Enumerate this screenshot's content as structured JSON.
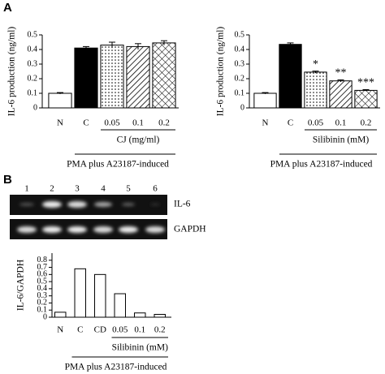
{
  "panels": [
    "A",
    "B"
  ],
  "gel": {
    "lanes": [
      "1",
      "2",
      "3",
      "4",
      "5",
      "6"
    ],
    "bands": [
      "IL-6",
      "GAPDH"
    ]
  },
  "chart_data": [
    {
      "type": "bar",
      "y_label": "IL-6 production (ng/ml)",
      "categories": [
        "N",
        "C",
        "0.05",
        "0.1",
        "0.2"
      ],
      "values": [
        0.1,
        0.41,
        0.43,
        0.42,
        0.445
      ],
      "errors": [
        0.005,
        0.01,
        0.02,
        0.02,
        0.015
      ],
      "patterns": [
        "none",
        "solid",
        "dots",
        "hatch",
        "crosshatch"
      ],
      "group_label": "CJ (mg/ml)",
      "treatment_label": "PMA plus A23187-induced",
      "ylim": [
        0,
        0.5
      ],
      "yticks": [
        0,
        0.1,
        0.2,
        0.3,
        0.4,
        0.5
      ]
    },
    {
      "type": "bar",
      "y_label": "IL-6 production (ng/ml)",
      "categories": [
        "N",
        "C",
        "0.05",
        "0.1",
        "0.2"
      ],
      "values": [
        0.1,
        0.435,
        0.245,
        0.185,
        0.12
      ],
      "errors": [
        0.005,
        0.01,
        0.007,
        0.007,
        0.005
      ],
      "patterns": [
        "none",
        "solid",
        "dots",
        "hatch",
        "crosshatch"
      ],
      "annotations": [
        null,
        null,
        "*",
        "**",
        "***"
      ],
      "group_label": "Silibinin (mM)",
      "treatment_label": "PMA plus A23187-induced",
      "ylim": [
        0,
        0.5
      ],
      "yticks": [
        0,
        0.1,
        0.2,
        0.3,
        0.4,
        0.5
      ]
    },
    {
      "type": "bar",
      "y_label": "IL-6/GAPDH",
      "categories": [
        "N",
        "C",
        "CD",
        "0.05",
        "0.1",
        "0.2"
      ],
      "values": [
        0.07,
        0.68,
        0.6,
        0.33,
        0.06,
        0.04
      ],
      "patterns": [
        "none",
        "none",
        "none",
        "none",
        "none",
        "none"
      ],
      "group_label": "Silibinin (mM)",
      "treatment_label": "PMA plus A23187-induced",
      "ylim": [
        0,
        0.9
      ],
      "yticks": [
        0,
        0.1,
        0.2,
        0.3,
        0.4,
        0.5,
        0.6,
        0.7,
        0.8
      ]
    }
  ]
}
